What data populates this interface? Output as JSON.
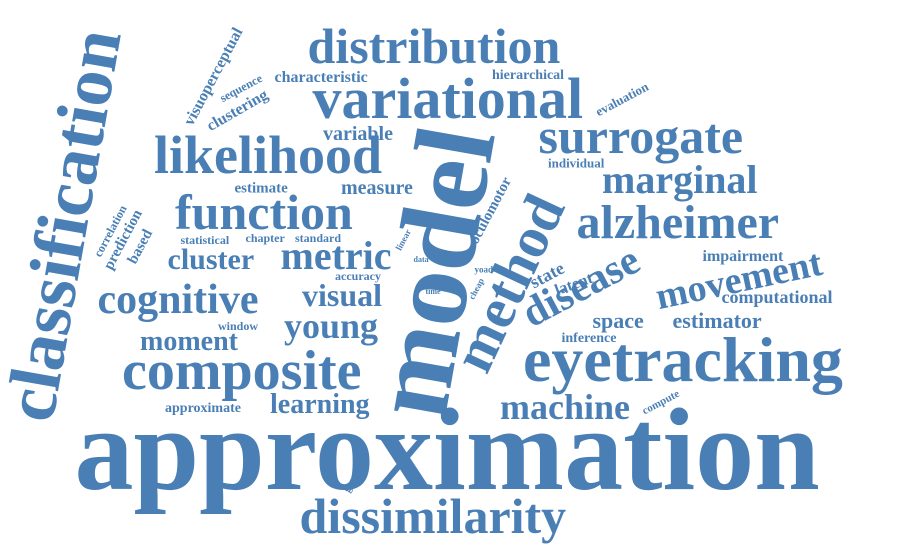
{
  "colors": {
    "word": "#4a7fb5",
    "background": "#ffffff"
  },
  "words": [
    "approximation",
    "model",
    "eyetracking",
    "classification",
    "variational",
    "likelihood",
    "composite",
    "distribution",
    "surrogate",
    "method",
    "function",
    "alzheimer",
    "dissimilarity",
    "cognitive",
    "marginal",
    "disease",
    "metric",
    "movement",
    "machine",
    "young",
    "visual",
    "cluster",
    "moment",
    "learning",
    "measure",
    "variable",
    "characteristic",
    "hierarchical",
    "clustering",
    "visuoperceptual",
    "space",
    "estimator",
    "computational",
    "impairment",
    "evaluation",
    "individual",
    "oculomotor",
    "estimate",
    "prediction",
    "based",
    "statistical",
    "chapter",
    "standard",
    "correlation",
    "window",
    "accuracy",
    "state",
    "latent",
    "inference",
    "approximate",
    "compute",
    "gaussian",
    "sequence",
    "linear",
    "data",
    "yoad",
    "cheap",
    "time"
  ]
}
